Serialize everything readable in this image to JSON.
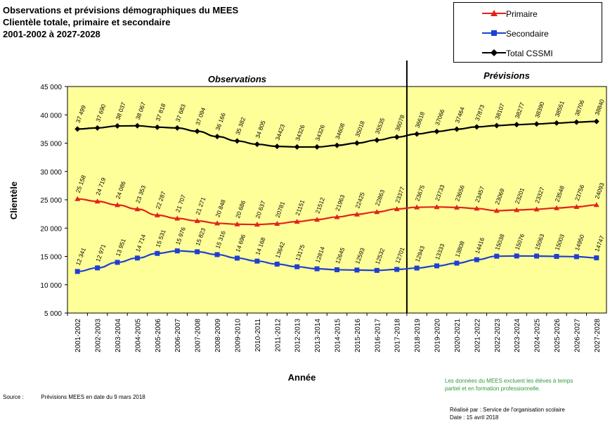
{
  "title_lines": [
    "Observations et prévisions démographiques du MEES",
    "Clientèle totale, primaire et secondaire",
    "2001-2002 à 2027-2028"
  ],
  "colors": {
    "background": "#ffff99",
    "primaire": "#e2231a",
    "secondaire": "#1f3fd1",
    "total": "#000000",
    "note": "#2f9a3a"
  },
  "chart_data": {
    "type": "line",
    "title": "Observations et prévisions démographiques du MEES",
    "xlabel": "Année",
    "ylabel": "Clientèle",
    "ylim": [
      5000,
      45000
    ],
    "y_ticks": [
      "5 000",
      "10 000",
      "15 000",
      "20 000",
      "25 000",
      "30 000",
      "35 000",
      "40 000",
      "45 000"
    ],
    "grid": false,
    "legend_position": "top-right",
    "period_labels": [
      "Observations",
      "Prévisions"
    ],
    "period_split_after": "2017-2018",
    "categories": [
      "2001-2002",
      "2002-2003",
      "2003-2004",
      "2004-2005",
      "2005-2006",
      "2006-2007",
      "2007-2008",
      "2008-2009",
      "2009-2010",
      "2010-2011",
      "2011-2012",
      "2012-2013",
      "2013-2014",
      "2014-2015",
      "2015-2016",
      "2016-2017",
      "2017-2018",
      "2018-2019",
      "2019-2020",
      "2020-2021",
      "2021-2022",
      "2022-2023",
      "2023-2024",
      "2024-2025",
      "2025-2026",
      "2026-2027",
      "2027-2028"
    ],
    "series": [
      {
        "name": "Total CSSMI",
        "key": "total",
        "marker": "diamond",
        "values": [
          37499,
          37690,
          38037,
          38067,
          37818,
          37683,
          37094,
          36166,
          35382,
          34805,
          34423,
          34326,
          34326,
          34608,
          35018,
          35535,
          36078,
          36618,
          37066,
          37464,
          37873,
          38107,
          38277,
          38390,
          38551,
          38706,
          38840
        ],
        "labels": [
          "37 499",
          "37 690",
          "38 037",
          "38 067",
          "37 818",
          "37 683",
          "37 094",
          "36 166",
          "35 382",
          "34 805",
          "34423",
          "34326",
          "34326",
          "34608",
          "35018",
          "35535",
          "36078",
          "36618",
          "37066",
          "37464",
          "37873",
          "38107",
          "38277",
          "38390",
          "38551",
          "38706",
          "38840"
        ]
      },
      {
        "name": "Primaire",
        "key": "primaire",
        "marker": "triangle",
        "values": [
          25158,
          24719,
          24086,
          23353,
          22287,
          21707,
          21271,
          20848,
          20686,
          20637,
          20781,
          21151,
          21512,
          21963,
          22425,
          22863,
          23377,
          23675,
          23733,
          23656,
          23457,
          23069,
          23201,
          23327,
          23548,
          23756,
          24093
        ],
        "labels": [
          "25 158",
          "24 719",
          "24 086",
          "23 353",
          "22 287",
          "21 707",
          "21 271",
          "20 848",
          "20 686",
          "20 637",
          "20781",
          "21151",
          "21512",
          "21963",
          "22425",
          "22863",
          "23377",
          "23675",
          "23733",
          "23656",
          "23457",
          "23069",
          "23201",
          "23327",
          "23548",
          "23756",
          "24093"
        ]
      },
      {
        "name": "Secondaire",
        "key": "secondaire",
        "marker": "square",
        "values": [
          12341,
          12971,
          13951,
          14714,
          15531,
          15976,
          15823,
          15316,
          14696,
          14168,
          13642,
          13175,
          12814,
          12645,
          12593,
          12532,
          12701,
          12943,
          13333,
          13808,
          14416,
          15038,
          15076,
          15063,
          15003,
          14950,
          14747
        ],
        "labels": [
          "12 341",
          "12 971",
          "13 951",
          "14 714",
          "15 531",
          "15 976",
          "15 823",
          "15 316",
          "14 696",
          "14 168",
          "13642",
          "13175",
          "12814",
          "12645",
          "12593",
          "12532",
          "12701",
          "12943",
          "13333",
          "13808",
          "14416",
          "15038",
          "15076",
          "15063",
          "15003",
          "14950",
          "14747"
        ]
      }
    ]
  },
  "legend": [
    {
      "label": "Primaire",
      "key": "primaire",
      "marker": "triangle"
    },
    {
      "label": "Secondaire",
      "key": "secondaire",
      "marker": "square"
    },
    {
      "label": "Total CSSMI",
      "key": "total",
      "marker": "diamond"
    }
  ],
  "note": {
    "line1": "Les données du MEES excluent les élèves à temps",
    "line2": "partiel et en formation professionnelle."
  },
  "source": {
    "label": "Source :",
    "text": "Prévisions MEES  en date du 9 mars 2018"
  },
  "credit": {
    "line1": "Réalisé par : Service de l'organisation scolaire",
    "line2": "Date : 15 avril 2018"
  }
}
